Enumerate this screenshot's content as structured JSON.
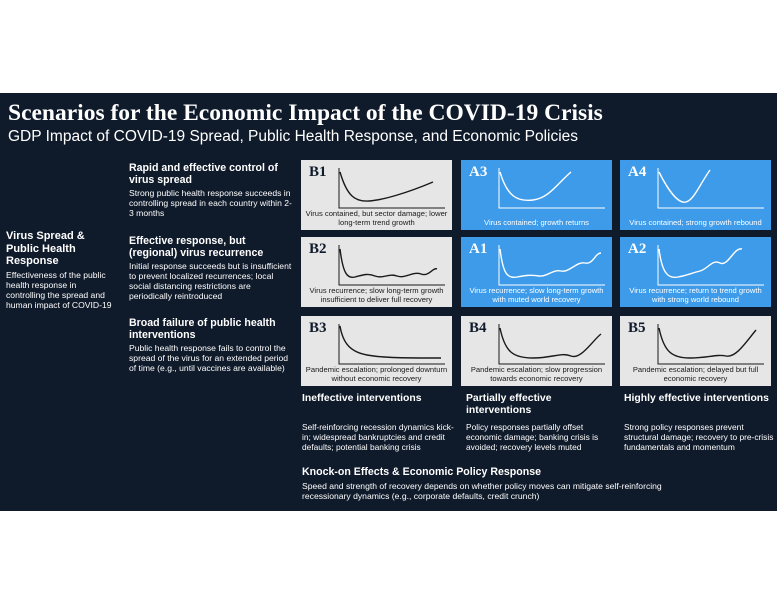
{
  "title": "Scenarios for the Economic Impact of the COVID-19 Crisis",
  "subtitle": "GDP Impact of COVID-19 Spread, Public Health Response, and Economic Policies",
  "y_axis": {
    "heading": "Virus Spread & Public Health Response",
    "text": "Effectiveness of the public health response in controlling the spread and human impact of COVID-19"
  },
  "rows": [
    {
      "heading": "Rapid and effective control of virus spread",
      "text": "Strong public health response succeeds in controlling spread in each country within 2-3 months"
    },
    {
      "heading": "Effective response, but (regional) virus recurrence",
      "text": "Initial response succeeds but is insufficient to prevent localized recurrences; local social distancing restrictions are periodically reintroduced"
    },
    {
      "heading": "Broad failure of public health interventions",
      "text": "Public health response fails to control the spread of the virus for an extended period of time (e.g., until vaccines are available)"
    }
  ],
  "cells": [
    [
      {
        "label": "B1",
        "caption": "Virus contained, but sector damage; lower long-term trend growth",
        "color": "grey",
        "curve": "u-low"
      },
      {
        "label": "A3",
        "caption": "Virus contained; growth returns",
        "color": "blue",
        "curve": "u"
      },
      {
        "label": "A4",
        "caption": "Virus contained; strong growth rebound",
        "color": "blue",
        "curve": "v"
      }
    ],
    [
      {
        "label": "B2",
        "caption": "Virus recurrence; slow long-term growth insufficient to deliver full recovery",
        "color": "grey",
        "curve": "wavy-flat"
      },
      {
        "label": "A1",
        "caption": "Virus recurrence; slow long-term growth with muted world recovery",
        "color": "blue",
        "curve": "wavy-rise"
      },
      {
        "label": "A2",
        "caption": "Virus recurrence; return to trend growth with strong world rebound",
        "color": "blue",
        "curve": "wavy-strong"
      }
    ],
    [
      {
        "label": "B3",
        "caption": "Pandemic escalation; prolonged downturn without economic recovery",
        "color": "grey",
        "curve": "l"
      },
      {
        "label": "B4",
        "caption": "Pandemic escalation; slow progression towards economic recovery",
        "color": "grey",
        "curve": "wide-u"
      },
      {
        "label": "B5",
        "caption": "Pandemic escalation; delayed but full economic recovery",
        "color": "grey",
        "curve": "wide-u-full"
      }
    ]
  ],
  "columns": [
    {
      "heading": "Ineffective interventions",
      "text": "Self-reinforcing recession dynamics kick-in; widespread bankruptcies and credit defaults; potential banking crisis"
    },
    {
      "heading": "Partially effective interventions",
      "text": "Policy responses partially offset economic damage; banking crisis is avoided; recovery levels muted"
    },
    {
      "heading": "Highly effective interventions",
      "text": "Strong policy responses prevent structural damage; recovery to pre-crisis fundamentals and momentum"
    }
  ],
  "x_axis": {
    "heading": "Knock-on Effects & Economic Policy Response",
    "text": "Speed and strength of recovery depends on whether policy moves can mitigate self-reinforcing recessionary dynamics (e.g., corporate defaults, credit crunch)"
  },
  "colors": {
    "background": "#0f1a2a",
    "grey_cell": "#e6e6e6",
    "blue_cell": "#3d9be9"
  }
}
